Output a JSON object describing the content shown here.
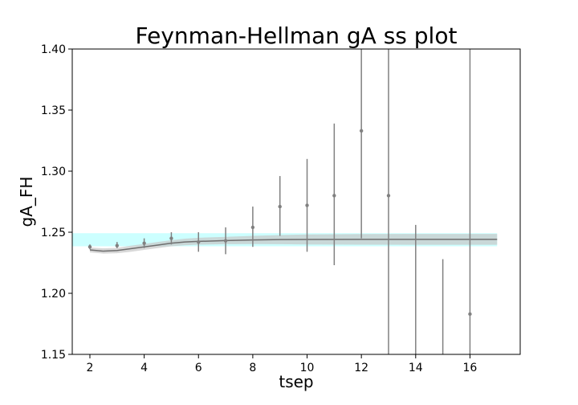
{
  "chart_data": {
    "type": "scatter",
    "title": "Feynman-Hellman gA ss plot",
    "xlabel": "tsep",
    "ylabel": "gA_FH",
    "xlim": [
      1.35,
      17.85
    ],
    "ylim": [
      1.15,
      1.4
    ],
    "xticks": [
      2,
      4,
      6,
      8,
      10,
      12,
      14,
      16
    ],
    "yticks": [
      1.15,
      1.2,
      1.25,
      1.3,
      1.35,
      1.4
    ],
    "xtick_labels": [
      "2",
      "4",
      "6",
      "8",
      "10",
      "12",
      "14",
      "16"
    ],
    "ytick_labels": [
      "1.15",
      "1.20",
      "1.25",
      "1.30",
      "1.35",
      "1.40"
    ],
    "grid": false,
    "legend": "none",
    "colors": {
      "points": "#808080",
      "fit_line": "#6e6e6e",
      "fit_band": "#c8c8c8",
      "plateau_band": "#7fffff",
      "overlap_band": "#9fd3d3"
    },
    "points": [
      {
        "x": 2,
        "y": 1.238,
        "yerr_low": 1.236,
        "yerr_high": 1.24
      },
      {
        "x": 3,
        "y": 1.239,
        "yerr_low": 1.237,
        "yerr_high": 1.242
      },
      {
        "x": 4,
        "y": 1.241,
        "yerr_low": 1.237,
        "yerr_high": 1.245
      },
      {
        "x": 5,
        "y": 1.245,
        "yerr_low": 1.24,
        "yerr_high": 1.25
      },
      {
        "x": 6,
        "y": 1.242,
        "yerr_low": 1.234,
        "yerr_high": 1.25
      },
      {
        "x": 7,
        "y": 1.243,
        "yerr_low": 1.232,
        "yerr_high": 1.254
      },
      {
        "x": 8,
        "y": 1.254,
        "yerr_low": 1.238,
        "yerr_high": 1.271
      },
      {
        "x": 9,
        "y": 1.271,
        "yerr_low": 1.247,
        "yerr_high": 1.296
      },
      {
        "x": 10,
        "y": 1.272,
        "yerr_low": 1.234,
        "yerr_high": 1.31
      },
      {
        "x": 11,
        "y": 1.28,
        "yerr_low": 1.223,
        "yerr_high": 1.339
      },
      {
        "x": 12,
        "y": 1.333,
        "yerr_low": 1.245,
        "yerr_high": 1.42
      },
      {
        "x": 13,
        "y": 1.28,
        "yerr_low": 1.14,
        "yerr_high": 1.42
      },
      {
        "x": 14,
        "y": null,
        "yerr_low": 1.14,
        "yerr_high": 1.256
      },
      {
        "x": 15,
        "y": null,
        "yerr_low": 1.14,
        "yerr_high": 1.228
      },
      {
        "x": 16,
        "y": 1.183,
        "yerr_low": 1.14,
        "yerr_high": 1.42
      }
    ],
    "fit_curve": {
      "x": [
        2.0,
        2.5,
        3.0,
        3.5,
        4.0,
        4.5,
        5.0,
        5.5,
        6.0,
        7.0,
        8.0,
        9.0,
        10.0,
        12.0,
        14.0,
        17.0
      ],
      "y": [
        1.2355,
        1.2345,
        1.235,
        1.2365,
        1.238,
        1.2395,
        1.241,
        1.242,
        1.2425,
        1.2432,
        1.2437,
        1.244,
        1.2441,
        1.2442,
        1.2442,
        1.2442
      ],
      "band_low": [
        1.2335,
        1.2325,
        1.2328,
        1.234,
        1.2355,
        1.237,
        1.2385,
        1.2393,
        1.2398,
        1.2402,
        1.2403,
        1.2402,
        1.24,
        1.2398,
        1.2397,
        1.2397
      ],
      "band_high": [
        1.2375,
        1.2368,
        1.2372,
        1.239,
        1.2405,
        1.242,
        1.2435,
        1.2447,
        1.2455,
        1.2462,
        1.247,
        1.2477,
        1.2482,
        1.2485,
        1.2486,
        1.2486
      ]
    },
    "plateau": {
      "x_start": 1.0,
      "x_end": 17.0,
      "y_low": 1.2385,
      "y_high": 1.2492
    }
  }
}
